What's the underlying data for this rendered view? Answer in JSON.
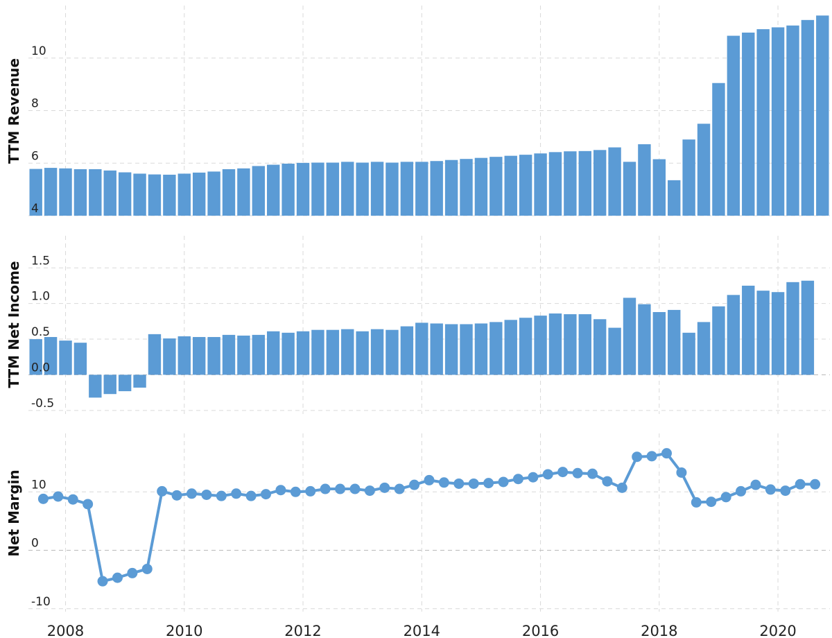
{
  "chart_data": [
    {
      "type": "bar",
      "name": "revenue-panel",
      "title": "",
      "xlabel": "",
      "ylabel": "TTM Revenue",
      "ylim": [
        4,
        12
      ],
      "yticks": [
        "4",
        "6",
        "8",
        "10"
      ],
      "ytick_values": [
        4,
        6,
        8,
        10
      ],
      "grid": true,
      "values": [
        5.78,
        5.82,
        5.8,
        5.77,
        5.77,
        5.72,
        5.65,
        5.6,
        5.57,
        5.56,
        5.6,
        5.64,
        5.68,
        5.77,
        5.8,
        5.89,
        5.94,
        5.98,
        6.01,
        6.02,
        6.02,
        6.05,
        6.02,
        6.05,
        6.02,
        6.05,
        6.05,
        6.08,
        6.12,
        6.16,
        6.2,
        6.24,
        6.28,
        6.32,
        6.37,
        6.42,
        6.45,
        6.46,
        6.5,
        6.6,
        6.05,
        6.72,
        6.15,
        5.35,
        6.9,
        7.5,
        9.05,
        10.85,
        10.97,
        11.1,
        11.17,
        11.24,
        11.45,
        11.62
      ]
    },
    {
      "type": "bar",
      "name": "net-income-panel",
      "title": "",
      "xlabel": "",
      "ylabel": "TTM Net Income",
      "ylim": [
        -0.55,
        1.95
      ],
      "yticks": [
        "-0.5",
        "0.0",
        "0.5",
        "1.0",
        "1.5"
      ],
      "ytick_values": [
        -0.5,
        0.0,
        0.5,
        1.0,
        1.5
      ],
      "grid": true,
      "values": [
        0.5,
        0.53,
        0.48,
        0.45,
        -0.32,
        -0.27,
        -0.23,
        -0.18,
        0.57,
        0.51,
        0.54,
        0.53,
        0.53,
        0.56,
        0.55,
        0.56,
        0.61,
        0.59,
        0.61,
        0.63,
        0.63,
        0.64,
        0.61,
        0.64,
        0.63,
        0.68,
        0.73,
        0.72,
        0.71,
        0.71,
        0.72,
        0.74,
        0.77,
        0.8,
        0.83,
        0.86,
        0.85,
        0.85,
        0.78,
        0.66,
        1.08,
        0.99,
        0.88,
        0.91,
        0.59,
        0.74,
        0.96,
        1.12,
        1.25,
        1.18,
        1.16,
        1.3,
        1.32
      ]
    },
    {
      "type": "line",
      "name": "net-margin-panel",
      "title": "",
      "xlabel": "",
      "ylabel": "Net Margin",
      "ylim": [
        -10.5,
        20
      ],
      "yticks": [
        "-10",
        "0",
        "10"
      ],
      "ytick_values": [
        -10,
        0,
        10
      ],
      "grid": true,
      "values": [
        8.8,
        9.2,
        8.7,
        7.9,
        -5.3,
        -4.7,
        -3.9,
        -3.2,
        10.1,
        9.4,
        9.7,
        9.5,
        9.3,
        9.7,
        9.3,
        9.6,
        10.3,
        10.0,
        10.1,
        10.5,
        10.5,
        10.5,
        10.2,
        10.7,
        10.5,
        11.2,
        12.0,
        11.6,
        11.4,
        11.4,
        11.5,
        11.7,
        12.2,
        12.5,
        13.0,
        13.4,
        13.2,
        13.1,
        11.8,
        10.7,
        16.0,
        16.1,
        16.6,
        13.3,
        8.2,
        8.3,
        9.1,
        10.1,
        11.2,
        10.4,
        10.2,
        11.3,
        11.3
      ]
    }
  ],
  "x_axis": {
    "ticks": [
      "2008",
      "2010",
      "2012",
      "2014",
      "2016",
      "2018",
      "2020"
    ],
    "tick_years": [
      2008,
      2010,
      2012,
      2014,
      2016,
      2018,
      2020
    ],
    "range_years": [
      2007.375,
      2020.875
    ],
    "period_years": 0.25,
    "revenue_start_year": 2007.5,
    "income_start_year": 2007.5,
    "margin_start_year": 2007.625
  }
}
